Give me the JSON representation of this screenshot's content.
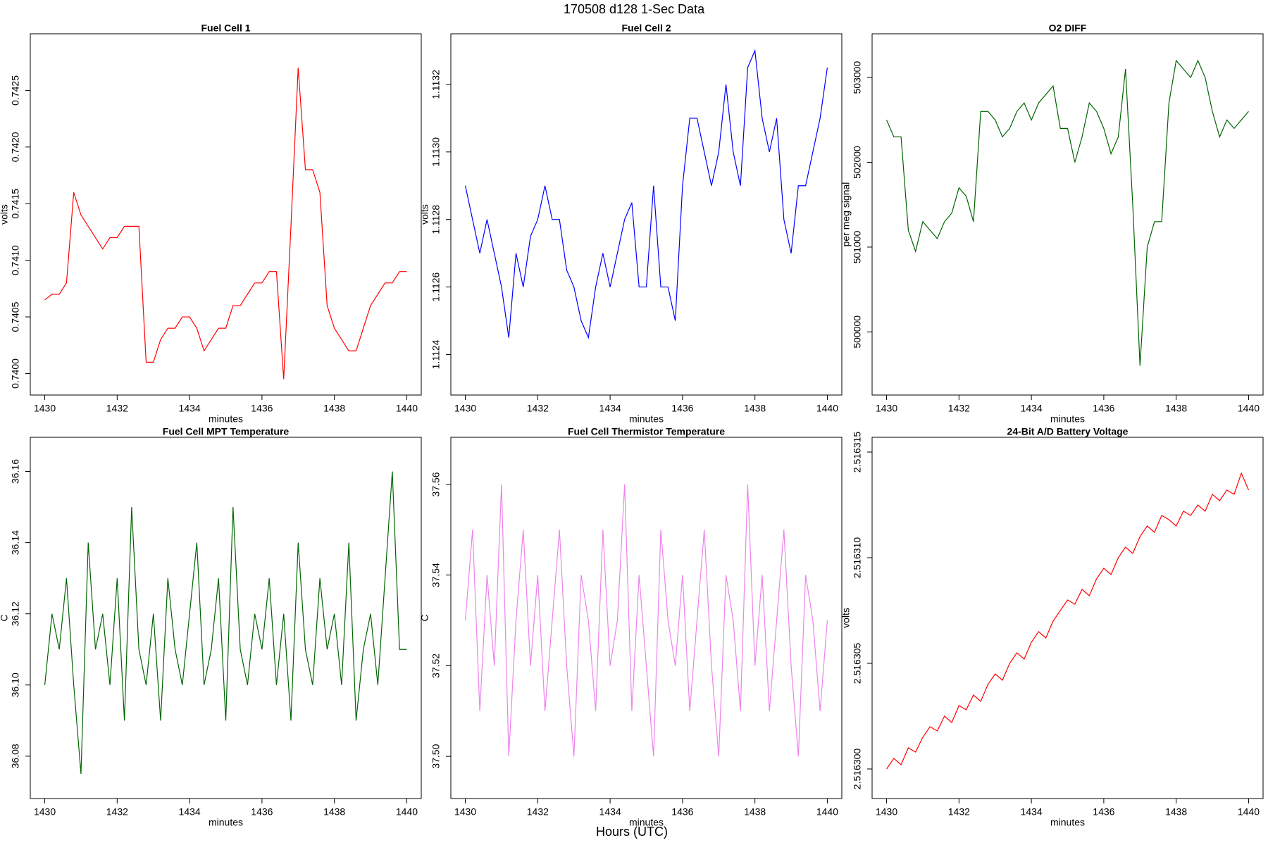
{
  "title": "170508   d128   1-Sec Data",
  "xlabel": "Hours (UTC)",
  "chart_data": [
    {
      "type": "line",
      "title": "Fuel Cell 1",
      "xlabel": "minutes",
      "ylabel": "volts",
      "color": "#ff0000",
      "xlim": [
        1429.6,
        1440.4
      ],
      "xticks": [
        1430,
        1432,
        1434,
        1436,
        1438,
        1440
      ],
      "ylim": [
        0.73981,
        0.743
      ],
      "yticks": [
        {
          "value": 0.74,
          "label": "0.7400"
        },
        0.7405,
        {
          "value": 0.741,
          "label": "0.7410"
        },
        0.7415,
        {
          "value": 0.742,
          "label": "0.7420"
        },
        0.7425
      ],
      "x": [
        1430,
        1430.2,
        1430.4,
        1430.6,
        1430.8,
        1431,
        1431.2,
        1431.4,
        1431.6,
        1431.8,
        1432,
        1432.2,
        1432.4,
        1432.6,
        1432.8,
        1433,
        1433.2,
        1433.4,
        1433.6,
        1433.8,
        1434,
        1434.2,
        1434.4,
        1434.6,
        1434.8,
        1435,
        1435.2,
        1435.4,
        1435.6,
        1435.8,
        1436,
        1436.2,
        1436.4,
        1436.6,
        1436.8,
        1437,
        1437.2,
        1437.4,
        1437.6,
        1437.8,
        1438,
        1438.2,
        1438.4,
        1438.6,
        1438.8,
        1439,
        1439.2,
        1439.4,
        1439.6,
        1439.8,
        1440
      ],
      "values": [
        0.74065,
        0.7407,
        0.7407,
        0.7408,
        0.7416,
        0.7414,
        0.7413,
        0.7412,
        0.7411,
        0.7412,
        0.7412,
        0.7413,
        0.7413,
        0.7413,
        0.7401,
        0.7401,
        0.7403,
        0.7404,
        0.7404,
        0.7405,
        0.7405,
        0.7404,
        0.7402,
        0.7403,
        0.7404,
        0.7404,
        0.7406,
        0.7406,
        0.7407,
        0.7408,
        0.7408,
        0.7409,
        0.7409,
        0.73995,
        0.7413,
        0.7427,
        0.7418,
        0.7418,
        0.7416,
        0.7406,
        0.7404,
        0.7403,
        0.7402,
        0.7402,
        0.7404,
        0.7406,
        0.7407,
        0.7408,
        0.7408,
        0.7409,
        0.7409
      ]
    },
    {
      "type": "line",
      "title": "Fuel Cell 2",
      "xlabel": "minutes",
      "ylabel": "volts",
      "color": "#0000ff",
      "xlim": [
        1429.6,
        1440.4
      ],
      "xticks": [
        1430,
        1432,
        1434,
        1436,
        1438,
        1440
      ],
      "ylim": [
        1.11228,
        1.11335
      ],
      "yticks": [
        1.1124,
        1.1126,
        1.1128,
        {
          "value": 1.113,
          "label": "1.1130"
        },
        1.1132
      ],
      "x": [
        1430,
        1430.2,
        1430.4,
        1430.6,
        1430.8,
        1431,
        1431.2,
        1431.4,
        1431.6,
        1431.8,
        1432,
        1432.2,
        1432.4,
        1432.6,
        1432.8,
        1433,
        1433.2,
        1433.4,
        1433.6,
        1433.8,
        1434,
        1434.2,
        1434.4,
        1434.6,
        1434.8,
        1435,
        1435.2,
        1435.4,
        1435.6,
        1435.8,
        1436,
        1436.2,
        1436.4,
        1436.6,
        1436.8,
        1437,
        1437.2,
        1437.4,
        1437.6,
        1437.8,
        1438,
        1438.2,
        1438.4,
        1438.6,
        1438.8,
        1439,
        1439.2,
        1439.4,
        1439.6,
        1439.8,
        1440
      ],
      "values": [
        1.1129,
        1.1128,
        1.1127,
        1.1128,
        1.1127,
        1.1126,
        1.11245,
        1.1127,
        1.1126,
        1.11275,
        1.1128,
        1.1129,
        1.1128,
        1.1128,
        1.11265,
        1.1126,
        1.1125,
        1.11245,
        1.1126,
        1.1127,
        1.1126,
        1.1127,
        1.1128,
        1.11285,
        1.1126,
        1.1126,
        1.1129,
        1.1126,
        1.1126,
        1.1125,
        1.1129,
        1.1131,
        1.1131,
        1.113,
        1.1129,
        1.113,
        1.1132,
        1.113,
        1.1129,
        1.11325,
        1.1133,
        1.1131,
        1.113,
        1.1131,
        1.1128,
        1.1127,
        1.1129,
        1.1129,
        1.113,
        1.1131,
        1.11325
      ]
    },
    {
      "type": "line",
      "title": "O2 DIFF",
      "xlabel": "minutes",
      "ylabel": "per meg signal",
      "color": "#006400",
      "xlim": [
        1429.6,
        1440.4
      ],
      "xticks": [
        1430,
        1432,
        1434,
        1436,
        1438,
        1440
      ],
      "ylim": [
        499255,
        503516
      ],
      "yticks": [
        500000,
        501000,
        502000,
        503000
      ],
      "x": [
        1430,
        1430.2,
        1430.4,
        1430.6,
        1430.8,
        1431,
        1431.2,
        1431.4,
        1431.6,
        1431.8,
        1432,
        1432.2,
        1432.4,
        1432.6,
        1432.8,
        1433,
        1433.2,
        1433.4,
        1433.6,
        1433.8,
        1434,
        1434.2,
        1434.4,
        1434.6,
        1434.8,
        1435,
        1435.2,
        1435.4,
        1435.6,
        1435.8,
        1436,
        1436.2,
        1436.4,
        1436.6,
        1436.8,
        1437,
        1437.2,
        1437.4,
        1437.6,
        1437.8,
        1438,
        1438.2,
        1438.4,
        1438.6,
        1438.8,
        1439,
        1439.2,
        1439.4,
        1439.6,
        1439.8,
        1440
      ],
      "values": [
        502500,
        502300,
        502300,
        501200,
        500950,
        501300,
        501200,
        501100,
        501300,
        501400,
        501700,
        501600,
        501300,
        502600,
        502600,
        502500,
        502300,
        502400,
        502600,
        502700,
        502500,
        502700,
        502800,
        502900,
        502400,
        502400,
        502000,
        502300,
        502700,
        502600,
        502400,
        502100,
        502300,
        503100,
        501500,
        499600,
        501000,
        501300,
        501300,
        502700,
        503200,
        503100,
        503000,
        503200,
        503000,
        502600,
        502300,
        502500,
        502400,
        502500,
        502600
      ]
    },
    {
      "type": "line",
      "title": "Fuel Cell MPT Temperature",
      "xlabel": "minutes",
      "ylabel": "C",
      "color": "#006400",
      "xlim": [
        1429.6,
        1440.4
      ],
      "xticks": [
        1430,
        1432,
        1434,
        1436,
        1438,
        1440
      ],
      "ylim": [
        36.0681,
        36.1696
      ],
      "yticks": [
        36.08,
        {
          "value": 36.1,
          "label": "36.10"
        },
        36.12,
        36.14,
        36.16
      ],
      "x": [
        1430,
        1430.2,
        1430.4,
        1430.6,
        1430.8,
        1431,
        1431.2,
        1431.4,
        1431.6,
        1431.8,
        1432,
        1432.2,
        1432.4,
        1432.6,
        1432.8,
        1433,
        1433.2,
        1433.4,
        1433.6,
        1433.8,
        1434,
        1434.2,
        1434.4,
        1434.6,
        1434.8,
        1435,
        1435.2,
        1435.4,
        1435.6,
        1435.8,
        1436,
        1436.2,
        1436.4,
        1436.6,
        1436.8,
        1437,
        1437.2,
        1437.4,
        1437.6,
        1437.8,
        1438,
        1438.2,
        1438.4,
        1438.6,
        1438.8,
        1439,
        1439.2,
        1439.4,
        1439.6,
        1439.8,
        1440
      ],
      "values": [
        36.1,
        36.12,
        36.11,
        36.13,
        36.1,
        36.075,
        36.14,
        36.11,
        36.12,
        36.1,
        36.13,
        36.09,
        36.15,
        36.11,
        36.1,
        36.12,
        36.09,
        36.13,
        36.11,
        36.1,
        36.12,
        36.14,
        36.1,
        36.11,
        36.13,
        36.09,
        36.15,
        36.11,
        36.1,
        36.12,
        36.11,
        36.13,
        36.1,
        36.12,
        36.09,
        36.14,
        36.11,
        36.1,
        36.13,
        36.11,
        36.12,
        36.1,
        36.14,
        36.09,
        36.11,
        36.12,
        36.1,
        36.13,
        36.16,
        36.11,
        36.11
      ]
    },
    {
      "type": "line",
      "title": "Fuel Cell Thermistor Temperature",
      "xlabel": "minutes",
      "ylabel": "C",
      "color": "#ee82ee",
      "xlim": [
        1429.6,
        1440.4
      ],
      "xticks": [
        1430,
        1432,
        1434,
        1436,
        1438,
        1440
      ],
      "ylim": [
        37.4907,
        37.5704
      ],
      "yticks": [
        {
          "value": 37.5,
          "label": "37.50"
        },
        37.52,
        37.54,
        37.56
      ],
      "x": [
        1430,
        1430.2,
        1430.4,
        1430.6,
        1430.8,
        1431,
        1431.2,
        1431.4,
        1431.6,
        1431.8,
        1432,
        1432.2,
        1432.4,
        1432.6,
        1432.8,
        1433,
        1433.2,
        1433.4,
        1433.6,
        1433.8,
        1434,
        1434.2,
        1434.4,
        1434.6,
        1434.8,
        1435,
        1435.2,
        1435.4,
        1435.6,
        1435.8,
        1436,
        1436.2,
        1436.4,
        1436.6,
        1436.8,
        1437,
        1437.2,
        1437.4,
        1437.6,
        1437.8,
        1438,
        1438.2,
        1438.4,
        1438.6,
        1438.8,
        1439,
        1439.2,
        1439.4,
        1439.6,
        1439.8,
        1440
      ],
      "values": [
        37.53,
        37.55,
        37.51,
        37.54,
        37.52,
        37.56,
        37.5,
        37.53,
        37.55,
        37.52,
        37.54,
        37.51,
        37.53,
        37.55,
        37.52,
        37.5,
        37.54,
        37.53,
        37.51,
        37.55,
        37.52,
        37.53,
        37.56,
        37.51,
        37.54,
        37.52,
        37.5,
        37.55,
        37.53,
        37.52,
        37.54,
        37.51,
        37.53,
        37.55,
        37.52,
        37.5,
        37.54,
        37.53,
        37.51,
        37.56,
        37.52,
        37.54,
        37.51,
        37.53,
        37.55,
        37.52,
        37.5,
        37.54,
        37.53,
        37.51,
        37.53
      ]
    },
    {
      "type": "line",
      "title": "24-Bit A/D Battery Voltage",
      "xlabel": "minutes",
      "ylabel": "volts",
      "color": "#ff0000",
      "xlim": [
        1429.6,
        1440.4
      ],
      "xticks": [
        1430,
        1432,
        1434,
        1436,
        1438,
        1440
      ],
      "ylim": [
        2.5162986,
        2.5163157
      ],
      "yticks": [
        {
          "value": 2.5163,
          "label": "2.516300"
        },
        2.516305,
        {
          "value": 2.51631,
          "label": "2.516310"
        },
        2.516315
      ],
      "x": [
        1430,
        1430.2,
        1430.4,
        1430.6,
        1430.8,
        1431,
        1431.2,
        1431.4,
        1431.6,
        1431.8,
        1432,
        1432.2,
        1432.4,
        1432.6,
        1432.8,
        1433,
        1433.2,
        1433.4,
        1433.6,
        1433.8,
        1434,
        1434.2,
        1434.4,
        1434.6,
        1434.8,
        1435,
        1435.2,
        1435.4,
        1435.6,
        1435.8,
        1436,
        1436.2,
        1436.4,
        1436.6,
        1436.8,
        1437,
        1437.2,
        1437.4,
        1437.6,
        1437.8,
        1438,
        1438.2,
        1438.4,
        1438.6,
        1438.8,
        1439,
        1439.2,
        1439.4,
        1439.6,
        1439.8,
        1440
      ],
      "values": [
        2.5163,
        2.5163005,
        2.5163002,
        2.516301,
        2.5163008,
        2.5163015,
        2.516302,
        2.5163018,
        2.5163025,
        2.5163022,
        2.516303,
        2.5163028,
        2.5163035,
        2.5163032,
        2.516304,
        2.5163045,
        2.5163042,
        2.516305,
        2.5163055,
        2.5163052,
        2.516306,
        2.5163065,
        2.5163062,
        2.516307,
        2.5163075,
        2.516308,
        2.5163078,
        2.5163085,
        2.5163082,
        2.516309,
        2.5163095,
        2.5163092,
        2.51631,
        2.5163105,
        2.5163102,
        2.516311,
        2.5163115,
        2.5163112,
        2.516312,
        2.5163118,
        2.5163115,
        2.5163122,
        2.516312,
        2.5163125,
        2.5163122,
        2.516313,
        2.5163127,
        2.5163132,
        2.516313,
        2.516314,
        2.5163132
      ]
    }
  ]
}
